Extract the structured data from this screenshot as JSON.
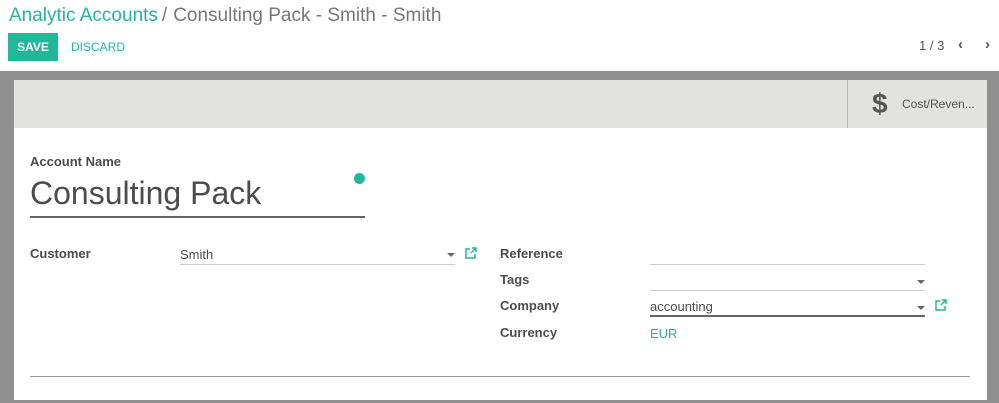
{
  "breadcrumb": {
    "parent": "Analytic Accounts",
    "separator": "/",
    "current": "Consulting Pack - Smith - Smith"
  },
  "toolbar": {
    "save_label": "SAVE",
    "discard_label": "DISCARD"
  },
  "pager": {
    "value": "1 / 3",
    "prev_icon": "chevron-left",
    "next_icon": "chevron-right"
  },
  "button_box": {
    "cost_revenue": {
      "icon": "dollar",
      "label": "Cost/Reven..."
    }
  },
  "form": {
    "account_name_label": "Account Name",
    "account_name": "Consulting Pack",
    "customer_label": "Customer",
    "customer": "Smith",
    "reference_label": "Reference",
    "reference": "",
    "tags_label": "Tags",
    "tags": "",
    "company_label": "Company",
    "company": "accounting",
    "currency_label": "Currency",
    "currency": "EUR"
  },
  "colors": {
    "accent": "#21b799",
    "background": "#8f8f8f",
    "button_box": "#e2e2e1"
  }
}
